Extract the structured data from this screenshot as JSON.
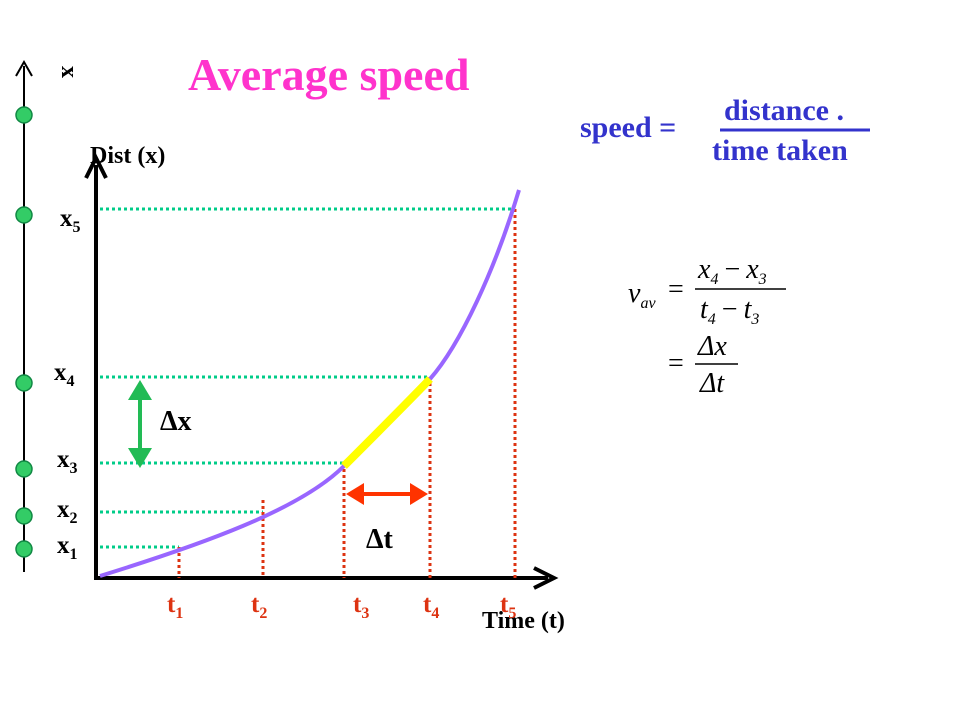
{
  "title": "Average speed",
  "colors": {
    "title": "#ff33cc",
    "formula_text": "#3333cc",
    "curve": "#9966ff",
    "highlight": "#ffff00",
    "guide_lines": "#00cc88",
    "drop_lines": "#dd3311",
    "point_fill": "#33cc66",
    "delta_x_arrow": "#22bb55",
    "delta_t_arrow": "#ff3300",
    "text_black": "#000000"
  },
  "left_axis": {
    "label": "x",
    "points": 6
  },
  "graph": {
    "y_axis_label": "Dist (x)",
    "x_axis_label": "Time (t)",
    "x_ticks": [
      {
        "base": "t",
        "sub": "1"
      },
      {
        "base": "t",
        "sub": "2"
      },
      {
        "base": "t",
        "sub": "3"
      },
      {
        "base": "t",
        "sub": "4"
      },
      {
        "base": "t",
        "sub": "5"
      }
    ],
    "y_ticks": [
      {
        "base": "x",
        "sub": "5"
      },
      {
        "base": "x",
        "sub": "4"
      },
      {
        "base": "x",
        "sub": "3"
      },
      {
        "base": "x",
        "sub": "2"
      },
      {
        "base": "x",
        "sub": "1"
      }
    ],
    "delta_x": "Δx",
    "delta_t": "Δt"
  },
  "speed_formula": {
    "lhs": "speed =",
    "numerator": "distance .",
    "denominator": "time taken"
  },
  "vavg_formula": {
    "v": "v",
    "v_sub": "av",
    "eq": "=",
    "num": {
      "a": "x",
      "a_sub": "4",
      "op": "−",
      "b": "x",
      "b_sub": "3"
    },
    "den": {
      "a": "t",
      "a_sub": "4",
      "op": "−",
      "b": "t",
      "b_sub": "3"
    },
    "eq2": "=",
    "num2": "Δx",
    "den2": "Δt"
  }
}
